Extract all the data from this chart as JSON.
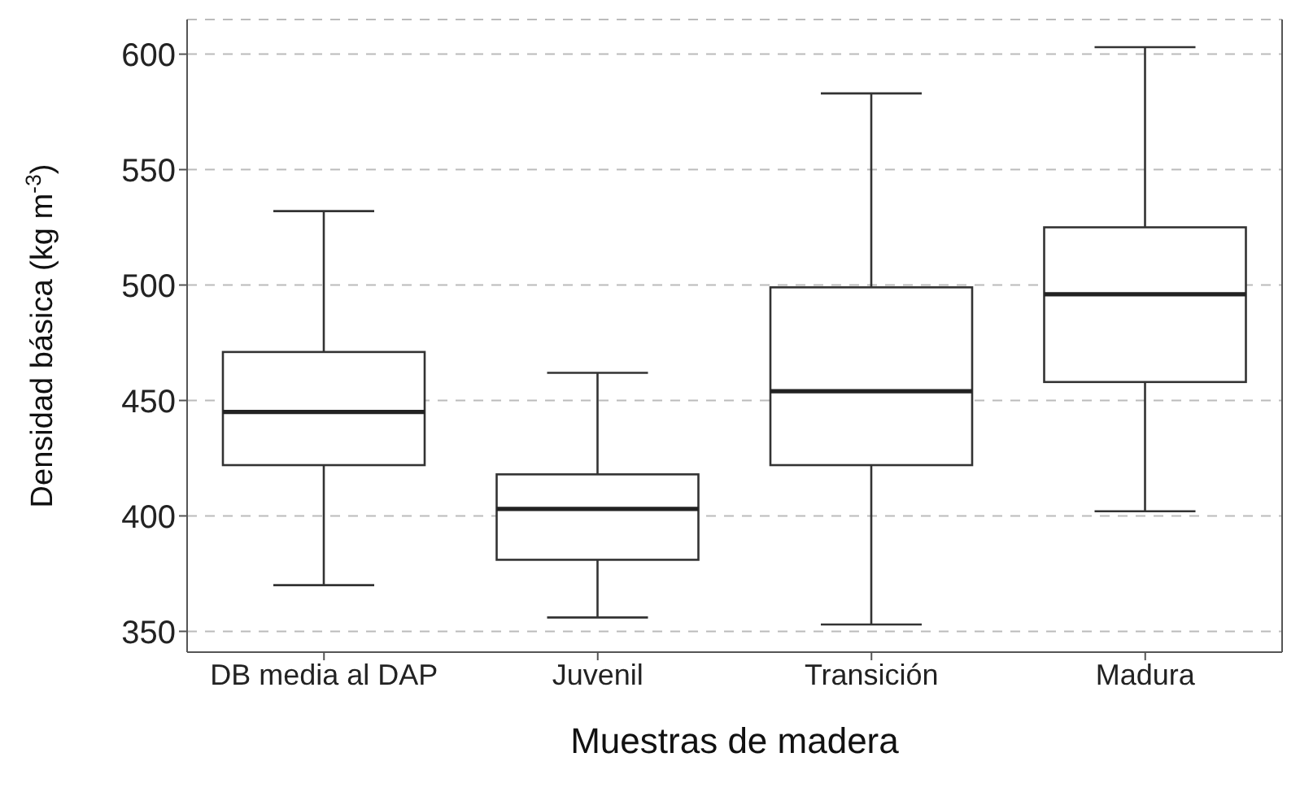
{
  "chart_data": {
    "type": "box",
    "xlabel": "Muestras de madera",
    "ylabel": "Densidad básica (kg m$^{-3}$)",
    "categories": [
      "DB media al DAP",
      "Juvenil",
      "Transición",
      "Madura"
    ],
    "boxes": [
      {
        "low": 370,
        "q1": 422,
        "median": 445,
        "q3": 471,
        "high": 532
      },
      {
        "low": 356,
        "q1": 381,
        "median": 403,
        "q3": 418,
        "high": 462
      },
      {
        "low": 353,
        "q1": 422,
        "median": 454,
        "q3": 499,
        "high": 583
      },
      {
        "low": 402,
        "q1": 458,
        "median": 496,
        "q3": 525,
        "high": 603
      }
    ],
    "ylim": [
      341,
      615
    ],
    "yticks": [
      350,
      400,
      450,
      500,
      550,
      600
    ],
    "grid": "y"
  }
}
